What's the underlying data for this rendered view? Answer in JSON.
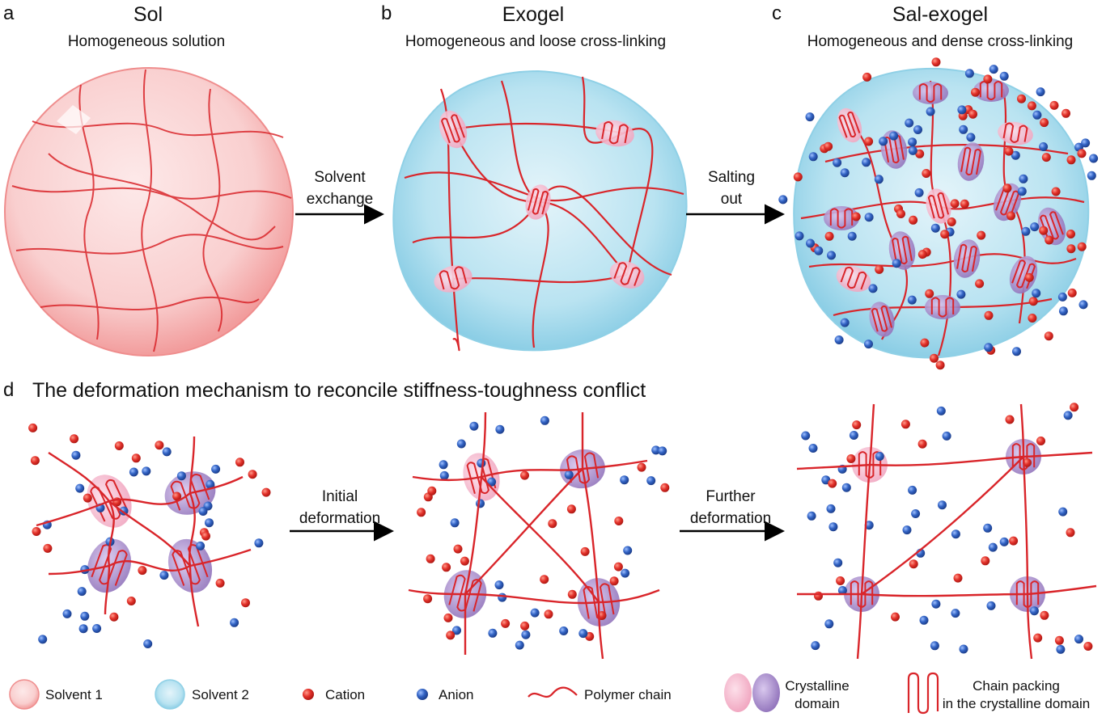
{
  "panels": [
    {
      "letter": "a",
      "title": "Sol",
      "subtitle": "Homogeneous solution"
    },
    {
      "letter": "b",
      "title": "Exogel",
      "subtitle": "Homogeneous and loose cross-linking"
    },
    {
      "letter": "c",
      "title": "Sal-exogel",
      "subtitle": "Homogeneous and dense cross-linking"
    }
  ],
  "arrows": {
    "solvent_exchange": [
      "Solvent",
      "exchange"
    ],
    "salting_out": [
      "Salting",
      "out"
    ],
    "initial_deformation": [
      "Initial",
      "deformation"
    ],
    "further_deformation": [
      "Further",
      "deformation"
    ]
  },
  "panel_d": {
    "letter": "d",
    "title": "The deformation mechanism to reconcile stiffness-toughness conflict"
  },
  "legend": {
    "solvent1": "Solvent 1",
    "solvent2": "Solvent 2",
    "cation": "Cation",
    "anion": "Anion",
    "polymer_chain": "Polymer chain",
    "crystalline_domain": [
      "Crystalline",
      "domain"
    ],
    "chain_packing": [
      "Chain packing",
      "in the crystalline domain"
    ]
  },
  "colors": {
    "sol_fill": "#f8c9c9",
    "sol_edge": "#f08f8f",
    "exogel_fill": "#aedeee",
    "chain": "#d9252a",
    "cation": "#e0302b",
    "anion": "#2f5fbf",
    "domain_pink": "#f4aec4",
    "domain_purple": "#9a7cc0"
  }
}
